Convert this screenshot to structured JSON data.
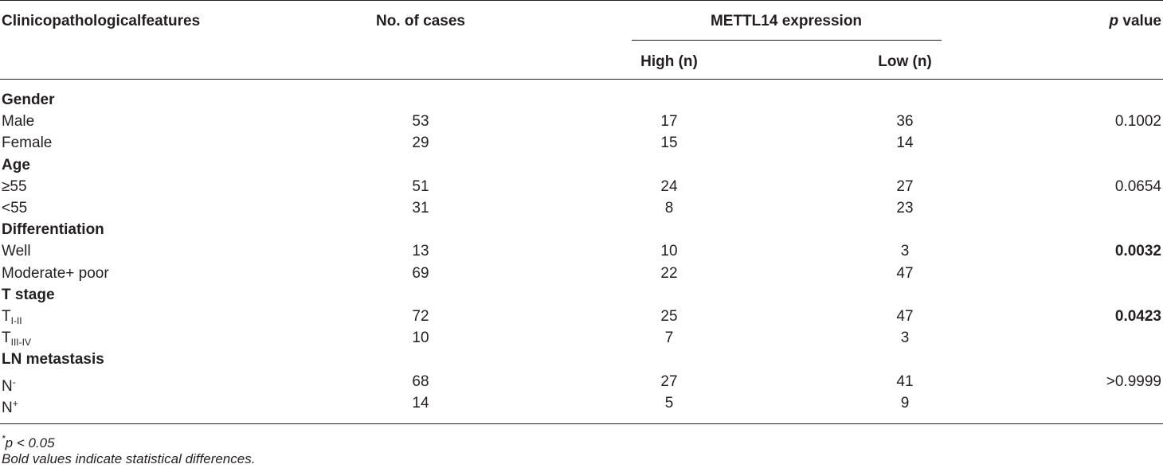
{
  "header": {
    "col_features": "Clinicopathologicalfeatures",
    "col_cases": "No. of cases",
    "col_expression": "METTL14 expression",
    "col_p_italic": "p",
    "col_p_rest": " value",
    "sub_high": "High (n)",
    "sub_low": "Low (n)"
  },
  "groups": [
    {
      "title": "Gender",
      "rows": [
        {
          "label": "Male",
          "cases": "53",
          "high": "17",
          "low": "36",
          "p": "0.1002",
          "p_bold": false
        },
        {
          "label": "Female",
          "cases": "29",
          "high": "15",
          "low": "14",
          "p": "",
          "p_bold": false
        }
      ]
    },
    {
      "title": "Age",
      "rows": [
        {
          "label": "≥55",
          "cases": "51",
          "high": "24",
          "low": "27",
          "p": "0.0654",
          "p_bold": false
        },
        {
          "label": "<55",
          "cases": "31",
          "high": "8",
          "low": "23",
          "p": "",
          "p_bold": false
        }
      ]
    },
    {
      "title": "Differentiation",
      "rows": [
        {
          "label": "Well",
          "cases": "13",
          "high": "10",
          "low": "3",
          "p": "0.0032",
          "p_bold": true
        },
        {
          "label": "Moderate+ poor",
          "cases": "69",
          "high": "22",
          "low": "47",
          "p": "",
          "p_bold": false
        }
      ]
    },
    {
      "title": "T stage",
      "rows": [
        {
          "label": "T",
          "label_sub": "I-II",
          "cases": "72",
          "high": "25",
          "low": "47",
          "p": "0.0423",
          "p_bold": true
        },
        {
          "label": "T",
          "label_sub": "III-IV",
          "cases": "10",
          "high": "7",
          "low": "3",
          "p": "",
          "p_bold": false
        }
      ]
    },
    {
      "title": "LN metastasis",
      "rows": [
        {
          "label": "N",
          "label_sup": "-",
          "cases": "68",
          "high": "27",
          "low": "41",
          "p": ">0.9999",
          "p_bold": false
        },
        {
          "label": "N",
          "label_sup": "+",
          "cases": "14",
          "high": "5",
          "low": "9",
          "p": "",
          "p_bold": false
        }
      ]
    }
  ],
  "footnotes": {
    "sig_star": "*",
    "sig_text": "p < 0.05",
    "note": "Bold values indicate statistical differences."
  }
}
